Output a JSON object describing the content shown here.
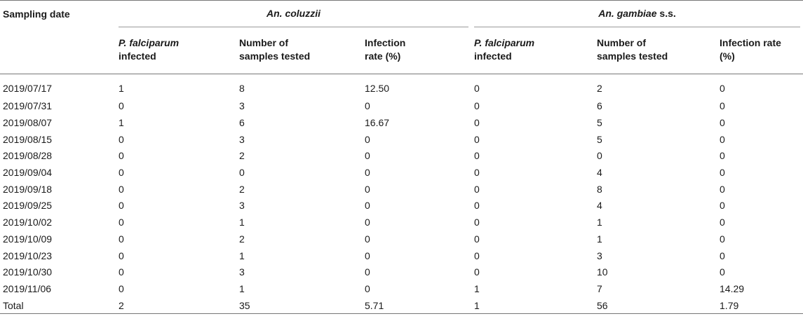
{
  "header": {
    "sampling_date": "Sampling date",
    "group1": "An. coluzzii",
    "group2_italic": "An. gambiae",
    "group2_suffix": " s.s.",
    "sub": {
      "pf_italic": "P. falciparum",
      "pf_line2": "infected",
      "tested_line1": "Number of",
      "tested_line2": "samples tested",
      "rate_line1": "Infection",
      "rate_line2": "rate (%)",
      "rate2_line1": "Infection rate",
      "rate2_line2": "(%)"
    }
  },
  "rows": [
    {
      "date": "2019/07/17",
      "c_inf": "1",
      "c_n": "8",
      "c_rate": "12.50",
      "g_inf": "0",
      "g_n": "2",
      "g_rate": "0"
    },
    {
      "date": "2019/07/31",
      "c_inf": "0",
      "c_n": "3",
      "c_rate": "0",
      "g_inf": "0",
      "g_n": "6",
      "g_rate": "0"
    },
    {
      "date": "2019/08/07",
      "c_inf": "1",
      "c_n": "6",
      "c_rate": "16.67",
      "g_inf": "0",
      "g_n": "5",
      "g_rate": "0"
    },
    {
      "date": "2019/08/15",
      "c_inf": "0",
      "c_n": "3",
      "c_rate": "0",
      "g_inf": "0",
      "g_n": "5",
      "g_rate": "0"
    },
    {
      "date": "2019/08/28",
      "c_inf": "0",
      "c_n": "2",
      "c_rate": "0",
      "g_inf": "0",
      "g_n": "0",
      "g_rate": "0"
    },
    {
      "date": "2019/09/04",
      "c_inf": "0",
      "c_n": "0",
      "c_rate": "0",
      "g_inf": "0",
      "g_n": "4",
      "g_rate": "0"
    },
    {
      "date": "2019/09/18",
      "c_inf": "0",
      "c_n": "2",
      "c_rate": "0",
      "g_inf": "0",
      "g_n": "8",
      "g_rate": "0"
    },
    {
      "date": "2019/09/25",
      "c_inf": "0",
      "c_n": "3",
      "c_rate": "0",
      "g_inf": "0",
      "g_n": "4",
      "g_rate": "0"
    },
    {
      "date": "2019/10/02",
      "c_inf": "0",
      "c_n": "1",
      "c_rate": "0",
      "g_inf": "0",
      "g_n": "1",
      "g_rate": "0"
    },
    {
      "date": "2019/10/09",
      "c_inf": "0",
      "c_n": "2",
      "c_rate": "0",
      "g_inf": "0",
      "g_n": "1",
      "g_rate": "0"
    },
    {
      "date": "2019/10/23",
      "c_inf": "0",
      "c_n": "1",
      "c_rate": "0",
      "g_inf": "0",
      "g_n": "3",
      "g_rate": "0"
    },
    {
      "date": "2019/10/30",
      "c_inf": "0",
      "c_n": "3",
      "c_rate": "0",
      "g_inf": "0",
      "g_n": "10",
      "g_rate": "0"
    },
    {
      "date": "2019/11/06",
      "c_inf": "0",
      "c_n": "1",
      "c_rate": "0",
      "g_inf": "1",
      "g_n": "7",
      "g_rate": "14.29"
    },
    {
      "date": "Total",
      "c_inf": "2",
      "c_n": "35",
      "c_rate": "5.71",
      "g_inf": "1",
      "g_n": "56",
      "g_rate": "1.79"
    }
  ]
}
